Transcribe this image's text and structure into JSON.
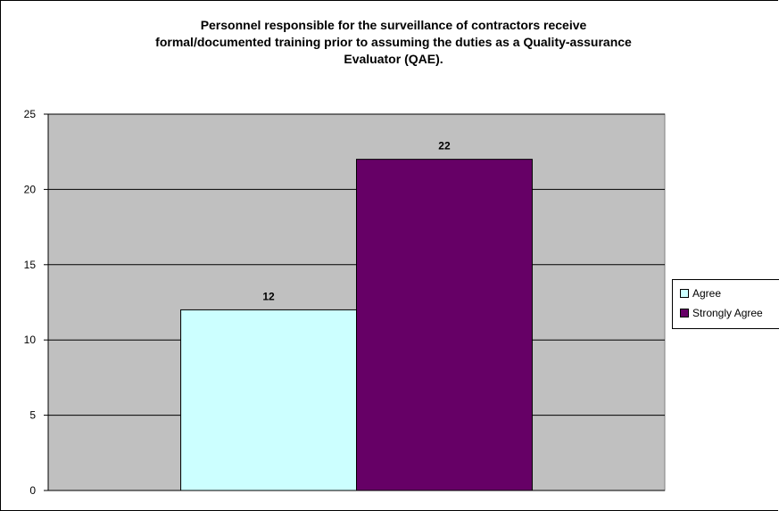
{
  "chart_data": {
    "type": "bar",
    "title": "Personnel responsible for the surveillance of contractors receive formal/documented training prior to assuming the duties as a Quality-assurance Evaluator (QAE).",
    "title_lines": [
      "Personnel responsible for the surveillance of contractors receive",
      "formal/documented training prior to assuming the duties as a Quality-assurance",
      "Evaluator (QAE)."
    ],
    "categories": [
      ""
    ],
    "series": [
      {
        "name": "Agree",
        "values": [
          12
        ],
        "color": "#CCFFFF"
      },
      {
        "name": "Strongly Agree",
        "values": [
          22
        ],
        "color": "#660066"
      }
    ],
    "xlabel": "",
    "ylabel": "",
    "ylim": [
      0,
      25
    ],
    "yticks": [
      0,
      5,
      10,
      15,
      20,
      25
    ],
    "grid": true,
    "legend_position": "right",
    "plot_background": "#C0C0C0"
  }
}
